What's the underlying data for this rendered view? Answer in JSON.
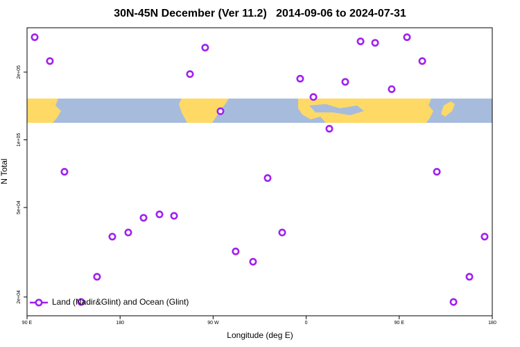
{
  "chart_data": {
    "type": "scatter",
    "title": "30N-45N December (Ver 11.2)   2014-09-06 to 2024-07-31",
    "x_label": "Longitude (deg E)",
    "y_label": "N Total",
    "xlim": [
      90,
      540
    ],
    "xticks": [
      {
        "value": 90,
        "label": "90 E"
      },
      180,
      {
        "value": 270,
        "label": "90 W"
      },
      {
        "value": 360,
        "label": "0"
      },
      {
        "value": 450,
        "label": "90 E"
      },
      {
        "value": 540,
        "label": "180"
      }
    ],
    "ylim": [
      16500,
      315000
    ],
    "yticks": [
      {
        "value": 20000,
        "label": "2e+04"
      },
      {
        "value": 50000,
        "label": "5e+04"
      },
      {
        "value": 100000,
        "label": "1e+05"
      },
      {
        "value": 200000,
        "label": "2e+05"
      }
    ],
    "y_log": true,
    "legend_position": "bottom-left",
    "series": [
      {
        "name": "Land (Nadir&Glint) and Ocean (Glint)",
        "color": "#a020f0",
        "x": [
          97.4,
          112.1,
          126.2,
          142.3,
          157.7,
          172.5,
          187.9,
          202.7,
          218.1,
          232.2,
          247.6,
          262.3,
          277.1,
          291.8,
          308.6,
          322.7,
          336.8,
          354.2,
          367.0,
          382.4,
          397.8,
          412.6,
          426.7,
          442.7,
          457.5,
          472.3,
          486.4,
          502.5,
          517.9,
          532.6
        ],
        "values": [
          286000,
          224000,
          72100,
          19000,
          24600,
          37100,
          38700,
          45000,
          46600,
          45900,
          196000,
          257000,
          134000,
          31900,
          28700,
          67600,
          38700,
          187000,
          155000,
          112000,
          181000,
          274000,
          270000,
          168000,
          286000,
          224000,
          72100,
          19000,
          24600,
          37100
        ]
      }
    ]
  }
}
